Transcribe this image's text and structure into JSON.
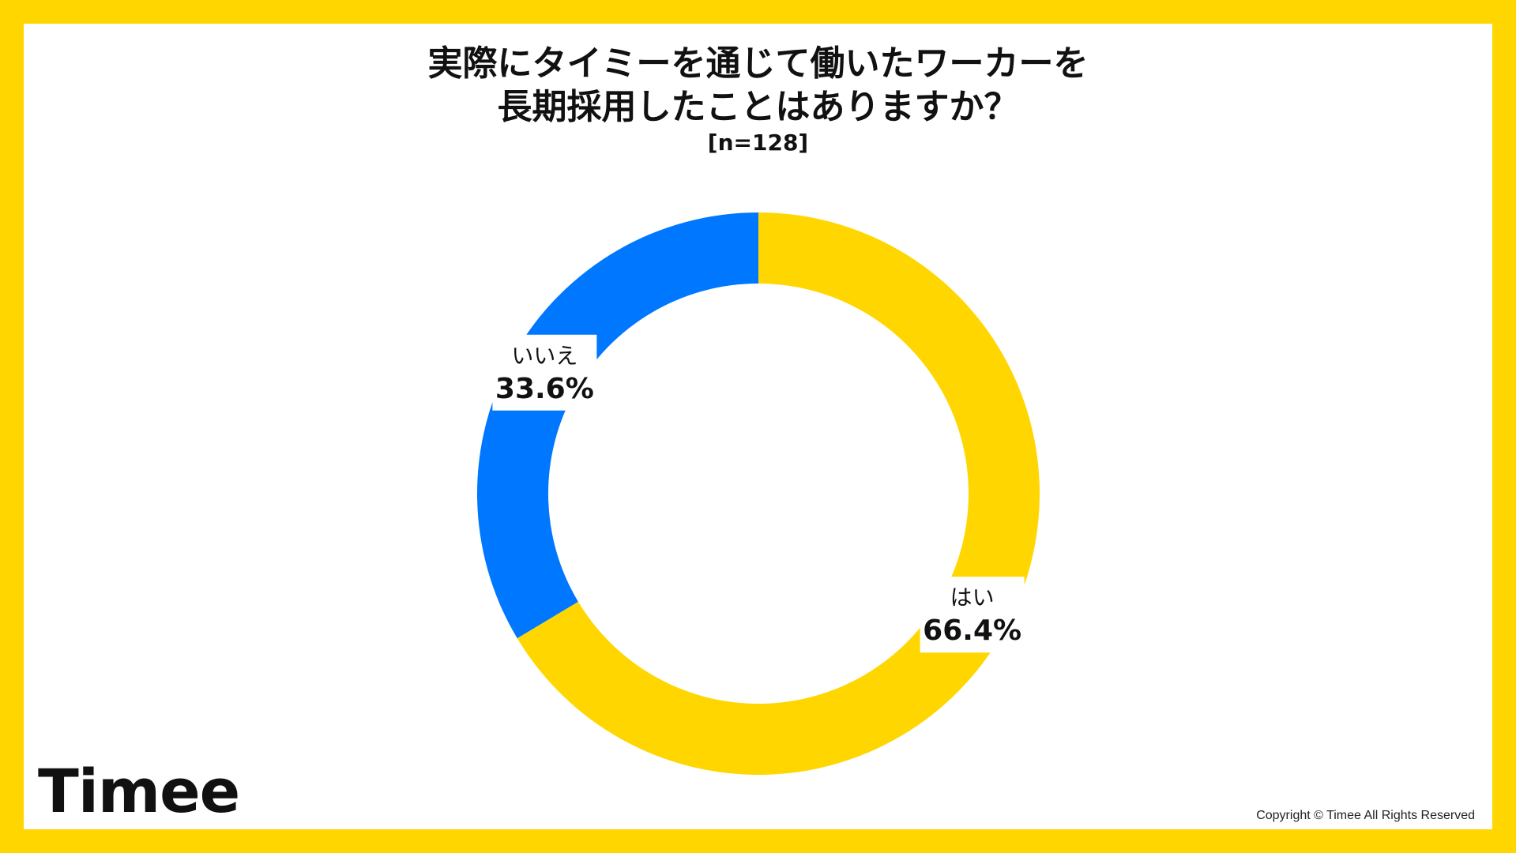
{
  "chart_data": {
    "type": "pie",
    "title": [
      "実際にタイミーを通じて働いたワーカーを",
      "長期採用したことはありますか？"
    ],
    "subtitle": "[n=128]",
    "donut": true,
    "slices": [
      {
        "label": "はい",
        "value": 66.4,
        "value_label": "66.4%",
        "color": "#FFD600"
      },
      {
        "label": "いいえ",
        "value": 33.6,
        "value_label": "33.6%",
        "color": "#0077FF"
      }
    ]
  },
  "brand": {
    "logo_text": "Timee",
    "copyright": "Copyright © Timee All Rights Reserved",
    "frame_color": "#FFD600"
  }
}
